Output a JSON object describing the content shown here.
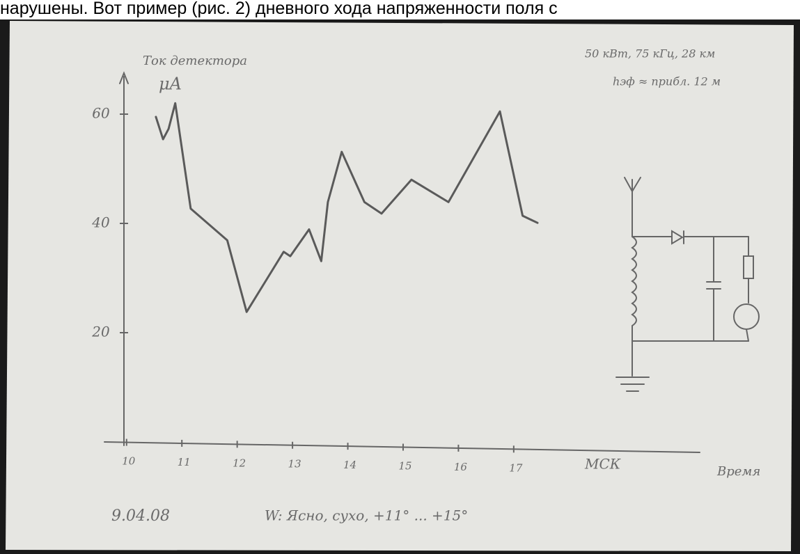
{
  "page_text": "нарушены. Вот пример (рис. 2) дневного хода напряженности поля с",
  "chart_data": {
    "type": "line",
    "y_label": "Ток детектора",
    "y_unit": "μA",
    "x_label": "Время",
    "x_unit": "МСК",
    "annotations": [
      "50 кВт, 75 кГц, 28 км",
      "hэф ≈ прибл. 12 м",
      "9.04.08",
      "W: Ясно, сухо, +11° ... +15°"
    ],
    "x": [
      10.53,
      10.66,
      10.76,
      10.88,
      11.16,
      11.82,
      12.17,
      12.84,
      12.96,
      13.3,
      13.52,
      13.64,
      13.89,
      14.3,
      14.61,
      15.15,
      15.82,
      16.75,
      17.16,
      17.43
    ],
    "values": [
      59.5,
      55.4,
      57.3,
      62,
      42.7,
      36.9,
      23.8,
      34.8,
      34,
      38.9,
      33.1,
      43.9,
      53.1,
      43.9,
      41.8,
      48,
      43.9,
      60.5,
      41.4,
      40.1
    ],
    "color": "#5a5a5a",
    "xlim": [
      9.6,
      20.3
    ],
    "xticks": [
      10,
      11,
      12,
      13,
      14,
      15,
      16,
      17
    ],
    "ylim": [
      0,
      68
    ],
    "yticks": [
      20,
      40,
      60
    ]
  }
}
